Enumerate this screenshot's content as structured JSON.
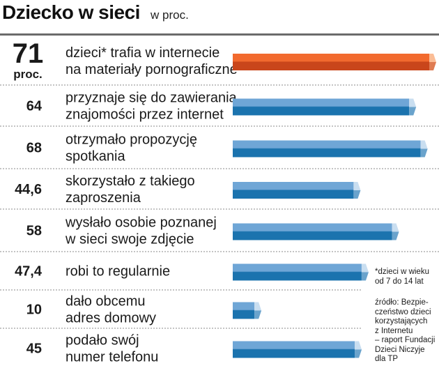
{
  "header": {
    "title": "Dziecko w sieci",
    "subtitle": "w proc."
  },
  "highlight_unit": "proc.",
  "footnote": "*dzieci w wieku\nod 7 do 14 lat",
  "source": "źródło: Bezpie-\nczeństwo dzieci\nkorzystających\nz Internetu\n– raport Fundacji\nDzieci Niczyje\ndla TP",
  "colors": {
    "highlight_top": "#f26a2e",
    "highlight_bottom": "#c9461b",
    "highlight_cap": "#fbbd96",
    "bar_top": "#6fa6d6",
    "bar_bottom": "#1b73ae",
    "bar_cap": "#c9def0",
    "divider": "#8a8a8a"
  },
  "chart_data": {
    "type": "bar",
    "orientation": "horizontal",
    "unit": "proc.",
    "xlim": [
      0,
      71
    ],
    "grid": false,
    "categories": [
      [
        "dzieci* trafia w internecie",
        "na materiały pornograficzne"
      ],
      [
        "przyznaje się do zawierania",
        "znajomości przez internet"
      ],
      [
        "otrzymało propozycję",
        "spotkania"
      ],
      [
        "skorzystało z takiego",
        "zaproszenia"
      ],
      [
        "wysłało osobie poznanej",
        "w sieci swoje zdjęcie"
      ],
      [
        "robi to regularnie"
      ],
      [
        "dało obcemu",
        "adres domowy"
      ],
      [
        "podało swój",
        "numer telefonu"
      ]
    ],
    "value_labels": [
      "71",
      "64",
      "68",
      "44,6",
      "58",
      "47,4",
      "10",
      "45"
    ],
    "values": [
      71,
      64,
      68,
      44.6,
      58,
      47.4,
      10,
      45
    ],
    "highlighted_index": 0
  }
}
